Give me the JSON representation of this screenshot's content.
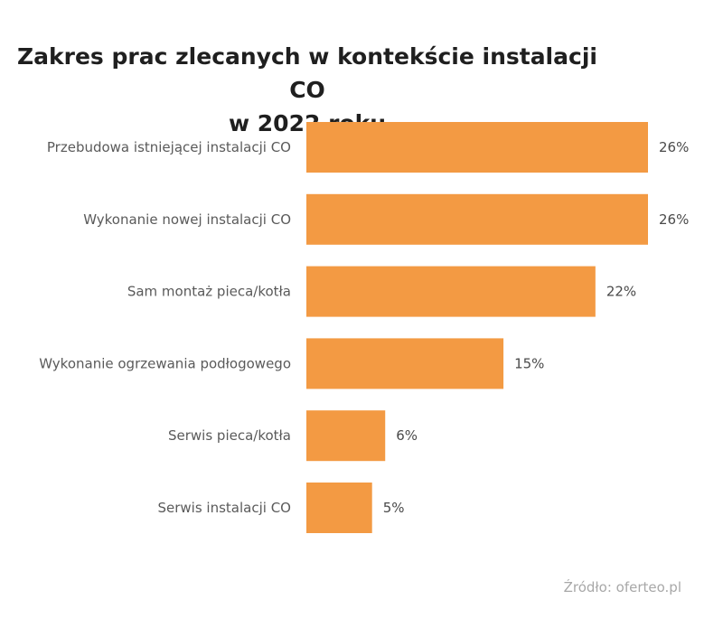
{
  "chart_data": {
    "type": "bar",
    "orientation": "horizontal",
    "title_lines": [
      "Zakres prac zlecanych w kontekście instalacji CO",
      "w 2022 roku"
    ],
    "categories": [
      "Przebudowa istniejącej instalacji CO",
      "Wykonanie nowej instalacji CO",
      "Sam montaż pieca/kotła",
      "Wykonanie ogrzewania podłogowego",
      "Serwis pieca/kotła",
      "Serwis instalacji CO"
    ],
    "values": [
      26,
      26,
      22,
      15,
      6,
      5
    ],
    "value_labels": [
      "26%",
      "26%",
      "22%",
      "15%",
      "6%",
      "5%"
    ],
    "unit": "%",
    "bar_color": "#f39a43",
    "grid": false,
    "legend": "none",
    "xlim": [
      0,
      26
    ]
  },
  "source": "Źródło: oferteo.pl"
}
